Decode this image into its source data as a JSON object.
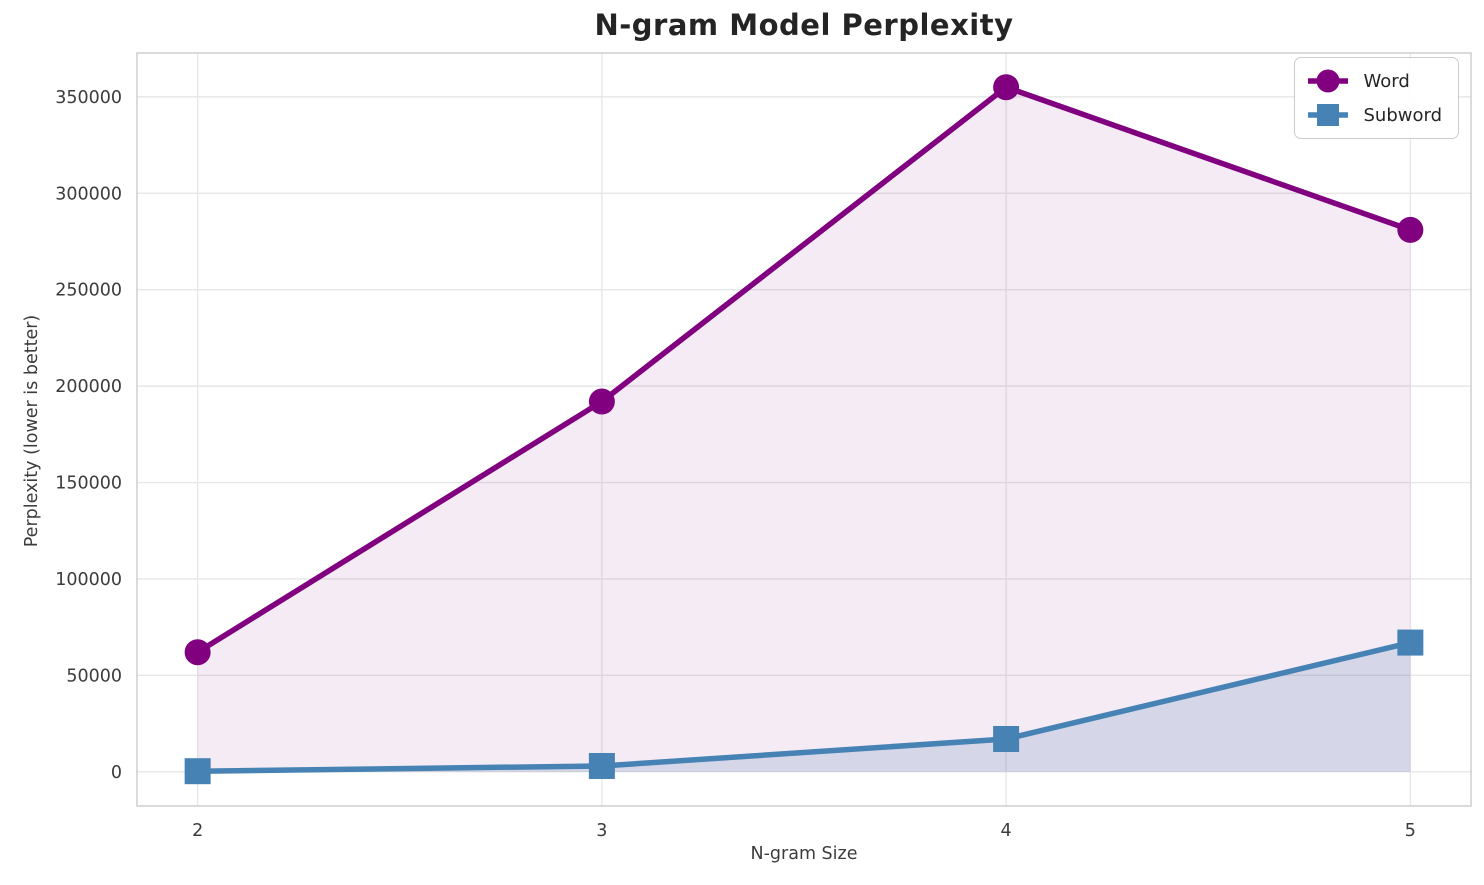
{
  "chart_data": {
    "type": "line",
    "title": "N-gram Model Perplexity",
    "xlabel": "N-gram Size",
    "ylabel": "Perplexity (lower is better)",
    "x": [
      2,
      3,
      4,
      5
    ],
    "series": [
      {
        "name": "Word",
        "marker": "circle",
        "color": "#800080",
        "fill_color": "#800080",
        "fill_alpha": 0.08,
        "values": [
          62000,
          192000,
          355000,
          281000
        ]
      },
      {
        "name": "Subword",
        "marker": "square",
        "color": "#4682B4",
        "fill_color": "#4682B4",
        "fill_alpha": 0.18,
        "values": [
          300,
          3000,
          17000,
          67000
        ]
      }
    ],
    "xticks": [
      2,
      3,
      4,
      5
    ],
    "yticks": [
      0,
      50000,
      100000,
      150000,
      200000,
      250000,
      300000,
      350000
    ],
    "xlim": [
      1.85,
      5.15
    ],
    "ylim": [
      -17750,
      372750
    ],
    "grid": true,
    "grid_color": "#e7e7e7",
    "spine_color": "#cfcfcf",
    "fill_to_zero": true,
    "legend_position": "upper right"
  }
}
